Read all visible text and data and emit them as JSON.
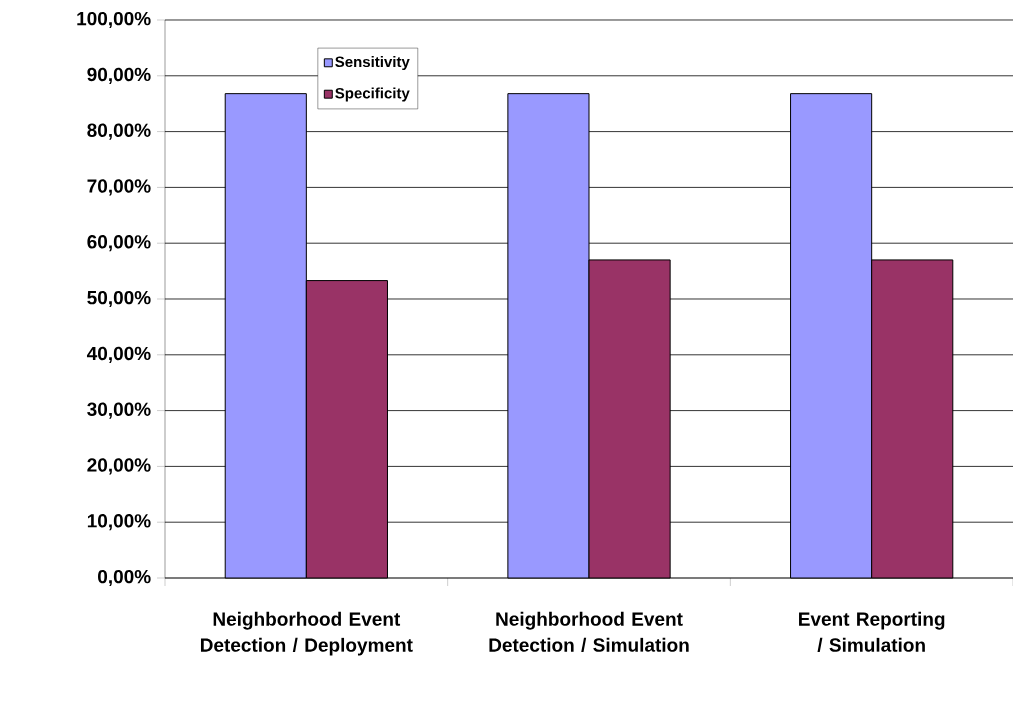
{
  "chart_data": {
    "type": "bar",
    "categories": [
      "Neighborhood Event Detection / Deployment",
      "Neighborhood Event Detection / Simulation",
      "Event Reporting / Simulation"
    ],
    "series": [
      {
        "name": "Sensitivity",
        "color": "#9999ff",
        "values": [
          86.8,
          86.8,
          86.8
        ]
      },
      {
        "name": "Specificity",
        "color": "#993366",
        "values": [
          53.3,
          57.0,
          57.0
        ]
      }
    ],
    "ylim": [
      0,
      100
    ],
    "yticks": [
      {
        "value": 0,
        "label": "0,00%"
      },
      {
        "value": 10,
        "label": "10,00%"
      },
      {
        "value": 20,
        "label": "20,00%"
      },
      {
        "value": 30,
        "label": "30,00%"
      },
      {
        "value": 40,
        "label": "40,00%"
      },
      {
        "value": 50,
        "label": "50,00%"
      },
      {
        "value": 60,
        "label": "60,00%"
      },
      {
        "value": 70,
        "label": "70,00%"
      },
      {
        "value": 80,
        "label": "80,00%"
      },
      {
        "value": 90,
        "label": "90,00%"
      },
      {
        "value": 100,
        "label": "100,00%"
      }
    ],
    "grid": "y",
    "legend": "top left"
  }
}
